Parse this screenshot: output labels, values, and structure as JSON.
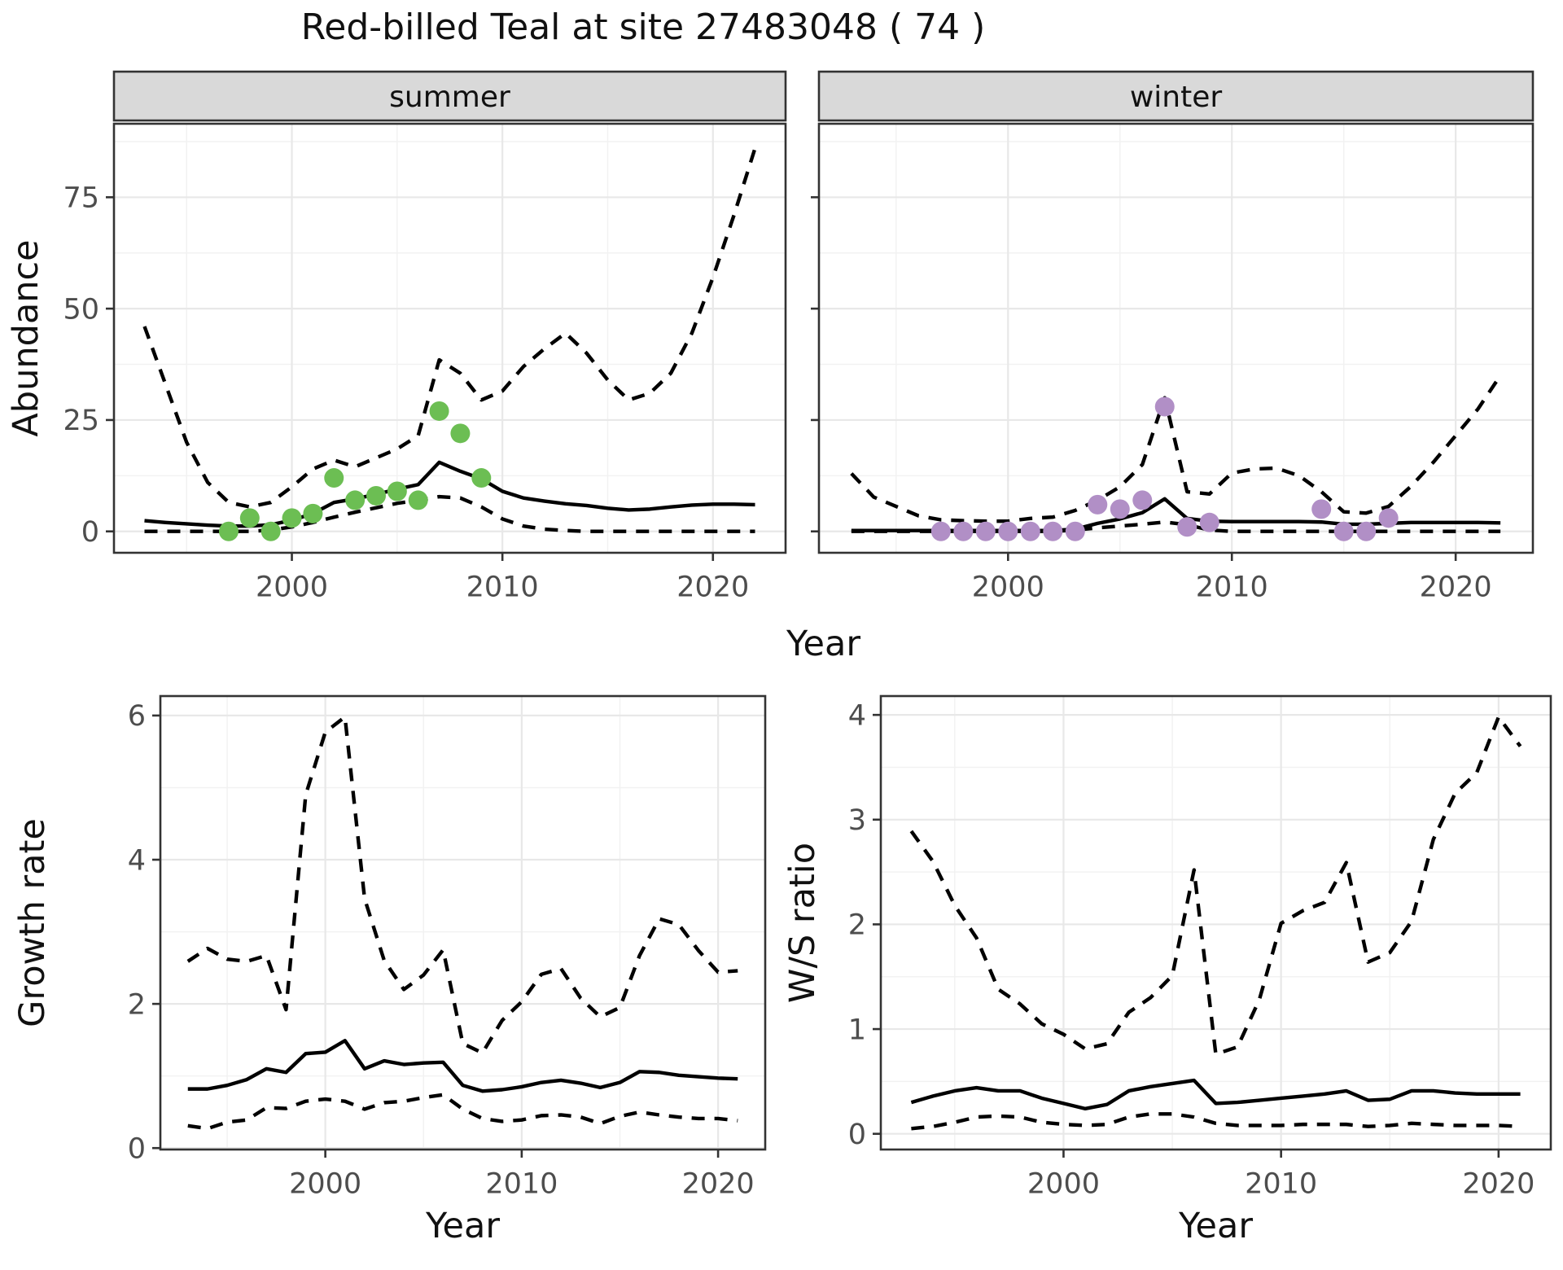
{
  "title": "Red-billed Teal at site 27483048 ( 74 )",
  "shared_axis": {
    "x_label": "Year"
  },
  "colors": {
    "summer_points": "#6cbe53",
    "winter_points": "#b18fc6",
    "line": "#000000",
    "strip_bg": "#d9d9d9",
    "panel_border": "#333333",
    "grid_major": "#e8e8e8",
    "grid_minor": "#f2f2f2",
    "tick_label": "#4d4d4d",
    "text": "#111111"
  },
  "chart_data": [
    {
      "id": "abundance_summer",
      "type": "line",
      "facet_label": "summer",
      "ylabel": "Abundance",
      "xlabel": "Year",
      "xlim": [
        1991.55,
        2023.45
      ],
      "ylim": [
        -4.8,
        91.5
      ],
      "xticks": [
        2000,
        2010,
        2020
      ],
      "xticks_minor": [
        1995,
        2005,
        2015
      ],
      "yticks": [
        0,
        25,
        50,
        75
      ],
      "yticks_minor": [
        12.5,
        37.5,
        62.5,
        87.5
      ],
      "show_ytick_labels": true,
      "grid": true,
      "x": [
        1993,
        1994,
        1995,
        1996,
        1997,
        1998,
        1999,
        2000,
        2001,
        2002,
        2003,
        2004,
        2005,
        2006,
        2007,
        2008,
        2009,
        2010,
        2011,
        2012,
        2013,
        2014,
        2015,
        2016,
        2017,
        2018,
        2019,
        2020,
        2021,
        2022
      ],
      "series": [
        {
          "name": "upper_ci",
          "style": "dashed",
          "values": [
            46,
            33,
            20,
            11,
            6.5,
            5.5,
            6.5,
            10,
            14,
            16,
            14.5,
            16.5,
            18.5,
            21.5,
            38.5,
            35.5,
            29.5,
            31.5,
            37,
            41,
            44.5,
            40,
            34,
            29.5,
            31,
            35.5,
            44.5,
            57,
            71,
            86
          ]
        },
        {
          "name": "lower_ci",
          "style": "dashed",
          "values": [
            0,
            0,
            0,
            0,
            0,
            0,
            0.3,
            1,
            2,
            3.2,
            4.3,
            5.3,
            6.3,
            7,
            7.8,
            7.5,
            5.5,
            2.8,
            1.2,
            0.5,
            0.2,
            0,
            0,
            0,
            0,
            0,
            0,
            0,
            0,
            0
          ]
        },
        {
          "name": "fit",
          "style": "solid",
          "values": [
            2.4,
            2,
            1.7,
            1.4,
            1.2,
            1.2,
            1.5,
            2.5,
            4,
            6.5,
            7.3,
            8.3,
            9.5,
            10.5,
            15.5,
            13.5,
            11.8,
            9,
            7.5,
            6.8,
            6.2,
            5.8,
            5.2,
            4.8,
            5,
            5.5,
            5.9,
            6.1,
            6.1,
            6
          ]
        },
        {
          "name": "observations",
          "style": "points",
          "color_key": "summer_points",
          "x": [
            1997,
            1998,
            1999,
            2000,
            2001,
            2002,
            2003,
            2004,
            2005,
            2006,
            2007,
            2008,
            2009
          ],
          "values": [
            0,
            3,
            0,
            3,
            4,
            12,
            7,
            8,
            9,
            7,
            27,
            22,
            12
          ]
        }
      ]
    },
    {
      "id": "abundance_winter",
      "type": "line",
      "facet_label": "winter",
      "ylabel": "",
      "xlabel": "Year",
      "xlim": [
        1991.55,
        2023.45
      ],
      "ylim": [
        -4.8,
        91.5
      ],
      "xticks": [
        2000,
        2010,
        2020
      ],
      "xticks_minor": [
        1995,
        2005,
        2015
      ],
      "yticks": [
        0,
        25,
        50,
        75
      ],
      "yticks_minor": [
        12.5,
        37.5,
        62.5,
        87.5
      ],
      "show_ytick_labels": false,
      "grid": true,
      "x": [
        1993,
        1994,
        1995,
        1996,
        1997,
        1998,
        1999,
        2000,
        2001,
        2002,
        2003,
        2004,
        2005,
        2006,
        2007,
        2008,
        2009,
        2010,
        2011,
        2012,
        2013,
        2014,
        2015,
        2016,
        2017,
        2018,
        2019,
        2020,
        2021,
        2022
      ],
      "series": [
        {
          "name": "upper_ci",
          "style": "dashed",
          "values": [
            13,
            7.7,
            5.6,
            3.5,
            2.6,
            2.4,
            2.3,
            2.3,
            2.9,
            3.2,
            4.7,
            7,
            10,
            15,
            30,
            8.9,
            8.4,
            13.1,
            14,
            14.2,
            12.5,
            8.9,
            4.4,
            4.1,
            5.6,
            10.1,
            15.5,
            21.5,
            27.5,
            35
          ]
        },
        {
          "name": "lower_ci",
          "style": "dashed",
          "values": [
            0,
            0,
            0,
            0,
            0,
            0,
            0,
            0,
            0,
            0,
            0.3,
            0.8,
            1.2,
            1.6,
            2.1,
            1.5,
            0.3,
            0,
            0,
            0,
            0,
            0,
            0,
            0,
            0,
            0,
            0,
            0,
            0,
            0
          ]
        },
        {
          "name": "fit",
          "style": "solid",
          "values": [
            0.2,
            0.2,
            0.2,
            0.2,
            0.2,
            0.2,
            0.2,
            0.2,
            0.2,
            0.2,
            0.5,
            1.8,
            2.8,
            4.2,
            7.3,
            2.9,
            2.3,
            2.2,
            2.2,
            2.2,
            2.2,
            2.1,
            1.6,
            1.6,
            1.8,
            2,
            2,
            2,
            2,
            1.9
          ]
        },
        {
          "name": "observations",
          "style": "points",
          "color_key": "winter_points",
          "x": [
            1997,
            1998,
            1999,
            2000,
            2001,
            2002,
            2003,
            2004,
            2005,
            2006,
            2007,
            2008,
            2009,
            2014,
            2015,
            2016,
            2017
          ],
          "values": [
            0,
            0,
            0,
            0,
            0,
            0,
            0,
            6,
            5,
            7,
            28,
            1,
            2,
            5,
            0,
            0,
            3
          ]
        }
      ]
    },
    {
      "id": "growth_rate",
      "type": "line",
      "facet_label": "",
      "ylabel": "Growth rate",
      "xlabel": "Year",
      "xlim": [
        1991.6,
        2022.4
      ],
      "ylim": [
        -0.02,
        6.27
      ],
      "xticks": [
        2000,
        2010,
        2020
      ],
      "xticks_minor": [
        1995,
        2005,
        2015
      ],
      "yticks": [
        0,
        2,
        4,
        6
      ],
      "yticks_minor": [
        1,
        3,
        5
      ],
      "show_ytick_labels": true,
      "grid": true,
      "x": [
        1993,
        1994,
        1995,
        1996,
        1997,
        1998,
        1999,
        2000,
        2001,
        2002,
        2003,
        2004,
        2005,
        2006,
        2007,
        2008,
        2009,
        2010,
        2011,
        2012,
        2013,
        2014,
        2015,
        2016,
        2017,
        2018,
        2019,
        2020,
        2021
      ],
      "series": [
        {
          "name": "upper_ci",
          "style": "dashed",
          "values": [
            2.59,
            2.77,
            2.62,
            2.59,
            2.67,
            1.92,
            4.9,
            5.77,
            5.98,
            3.46,
            2.6,
            2.2,
            2.4,
            2.75,
            1.45,
            1.32,
            1.77,
            2.03,
            2.41,
            2.49,
            2.08,
            1.82,
            1.95,
            2.67,
            3.18,
            3.1,
            2.74,
            2.44,
            2.46
          ]
        },
        {
          "name": "lower_ci",
          "style": "dashed",
          "values": [
            0.31,
            0.27,
            0.36,
            0.39,
            0.56,
            0.55,
            0.65,
            0.68,
            0.65,
            0.54,
            0.63,
            0.65,
            0.7,
            0.74,
            0.54,
            0.41,
            0.37,
            0.39,
            0.45,
            0.46,
            0.43,
            0.34,
            0.44,
            0.5,
            0.46,
            0.43,
            0.41,
            0.41,
            0.38
          ]
        },
        {
          "name": "fit",
          "style": "solid",
          "values": [
            0.82,
            0.82,
            0.87,
            0.95,
            1.1,
            1.05,
            1.31,
            1.33,
            1.49,
            1.1,
            1.21,
            1.16,
            1.18,
            1.19,
            0.87,
            0.79,
            0.81,
            0.85,
            0.91,
            0.94,
            0.9,
            0.84,
            0.91,
            1.06,
            1.05,
            1.01,
            0.99,
            0.97,
            0.96
          ]
        }
      ]
    },
    {
      "id": "ws_ratio",
      "type": "line",
      "facet_label": "",
      "ylabel": "W/S ratio",
      "xlabel": "Year",
      "xlim": [
        1991.6,
        2022.4
      ],
      "ylim": [
        -0.15,
        4.18
      ],
      "xticks": [
        2000,
        2010,
        2020
      ],
      "xticks_minor": [
        1995,
        2005,
        2015
      ],
      "yticks": [
        0,
        1,
        2,
        3,
        4
      ],
      "yticks_minor": [
        0.5,
        1.5,
        2.5,
        3.5
      ],
      "show_ytick_labels": true,
      "grid": true,
      "x": [
        1993,
        1994,
        1995,
        1996,
        1997,
        1998,
        1999,
        2000,
        2001,
        2002,
        2003,
        2004,
        2005,
        2006,
        2007,
        2008,
        2009,
        2010,
        2011,
        2012,
        2013,
        2014,
        2015,
        2016,
        2017,
        2018,
        2019,
        2020,
        2021
      ],
      "series": [
        {
          "name": "upper_ci",
          "style": "dashed",
          "values": [
            2.89,
            2.6,
            2.18,
            1.87,
            1.38,
            1.24,
            1.05,
            0.95,
            0.81,
            0.86,
            1.16,
            1.3,
            1.51,
            2.52,
            0.76,
            0.83,
            1.28,
            2.01,
            2.13,
            2.21,
            2.59,
            1.64,
            1.73,
            2.03,
            2.81,
            3.25,
            3.45,
            3.98,
            3.7
          ]
        },
        {
          "name": "lower_ci",
          "style": "dashed",
          "values": [
            0.05,
            0.07,
            0.11,
            0.16,
            0.17,
            0.16,
            0.11,
            0.09,
            0.08,
            0.09,
            0.16,
            0.19,
            0.19,
            0.16,
            0.1,
            0.08,
            0.08,
            0.08,
            0.09,
            0.09,
            0.09,
            0.07,
            0.08,
            0.1,
            0.09,
            0.08,
            0.08,
            0.08,
            0.07
          ]
        },
        {
          "name": "fit",
          "style": "solid",
          "values": [
            0.3,
            0.36,
            0.41,
            0.44,
            0.41,
            0.41,
            0.34,
            0.29,
            0.24,
            0.28,
            0.41,
            0.45,
            0.48,
            0.51,
            0.29,
            0.3,
            0.32,
            0.34,
            0.36,
            0.38,
            0.41,
            0.32,
            0.33,
            0.41,
            0.41,
            0.39,
            0.38,
            0.38,
            0.38
          ]
        }
      ]
    }
  ]
}
